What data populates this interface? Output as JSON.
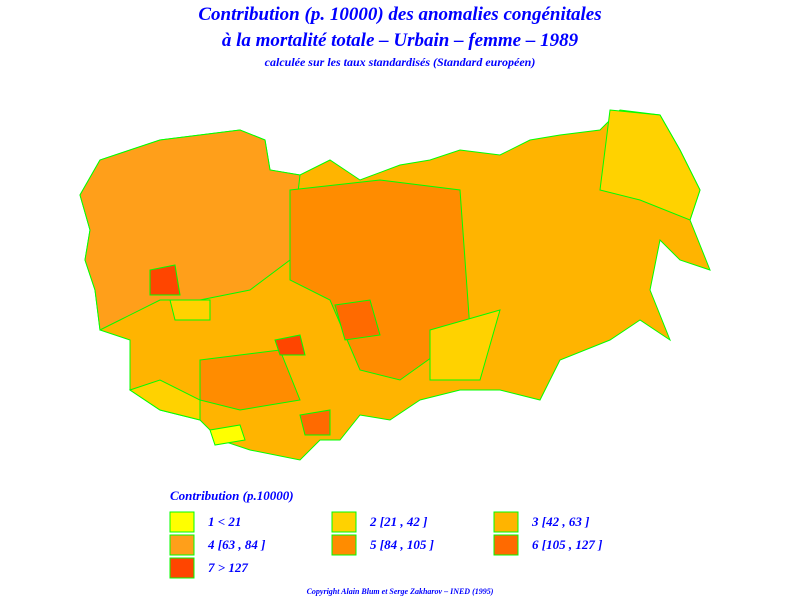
{
  "header": {
    "title_line1": "Contribution (p. 10000) des anomalies congénitales",
    "title_line2": "à la mortalité totale  –  Urbain  –  femme  –  1989",
    "subtitle": "calculée sur les taux standardisés (Standard européen)"
  },
  "legend": {
    "title": "Contribution  (p.10000)",
    "items": [
      {
        "label": "1  <  21",
        "color": "#ffff00"
      },
      {
        "label": "2  [21 ,  42 ]",
        "color": "#ffd200"
      },
      {
        "label": "3  [42 ,  63 ]",
        "color": "#ffb400"
      },
      {
        "label": "4  [63 ,  84 ]",
        "color": "#ff9f1a"
      },
      {
        "label": "5  [84 ,  105 ]",
        "color": "#ff8c00"
      },
      {
        "label": "6  [105 ,  127 ]",
        "color": "#ff6a00"
      },
      {
        "label": "7  >  127",
        "color": "#ff4500"
      }
    ]
  },
  "footer": {
    "copyright": "Copyright  Alain  Blum  et  Serge  Zakharov  –  INED  (1995)"
  }
}
